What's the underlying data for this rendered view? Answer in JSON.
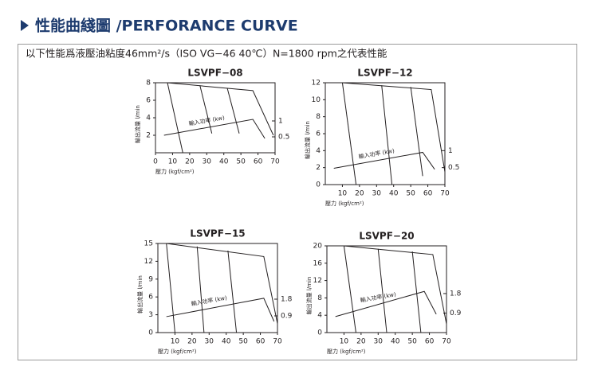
{
  "header": {
    "title": "性能曲綫圖 /PERFORANCE CURVE",
    "note": "以下性能爲液壓油粘度46mm²/s（ISO VG−46 40℃）N=1800 rpm之代表性能"
  },
  "chart_data": [
    {
      "type": "line",
      "title": "LSVPF−08",
      "x_label": "壓力 (kgf/cm²)",
      "y_label": "輸出流量 l/min",
      "annotation": "輸入功率 (kw)",
      "color": "#231f20",
      "xlim": [
        0,
        70
      ],
      "xticks": [
        0,
        10,
        20,
        30,
        40,
        50,
        60,
        70
      ],
      "ylim": [
        0,
        8
      ],
      "yticks": [
        2,
        4,
        6,
        8
      ],
      "y2lim": [
        0,
        2.2
      ],
      "y2ticks": [
        0.5,
        1
      ],
      "series": [
        {
          "x": [
            7,
            57,
            69
          ],
          "values": [
            8,
            7.1,
            2
          ]
        },
        {
          "x": [
            7,
            16
          ],
          "values": [
            8,
            0
          ]
        },
        {
          "x": [
            26,
            33
          ],
          "values": [
            7.7,
            2.2
          ]
        },
        {
          "x": [
            42,
            49
          ],
          "values": [
            7.4,
            2.2
          ]
        },
        {
          "x": [
            5,
            57,
            64
          ],
          "values": [
            0.55,
            1.05,
            0.45
          ],
          "axis": "y2"
        }
      ]
    },
    {
      "type": "line",
      "title": "LSVPF−12",
      "x_label": "壓力 (kgf/cm²)",
      "y_label": "輸出流量 l/min",
      "annotation": "輸入功率 (kw)",
      "color": "#231f20",
      "xlim": [
        0,
        70
      ],
      "xticks": [
        10,
        20,
        30,
        40,
        50,
        60,
        70
      ],
      "ylim": [
        0,
        12
      ],
      "yticks": [
        0,
        2,
        4,
        6,
        8,
        10,
        12
      ],
      "y2lim": [
        0,
        3
      ],
      "y2ticks": [
        0.5,
        1
      ],
      "series": [
        {
          "x": [
            10,
            62,
            70
          ],
          "values": [
            12,
            11.2,
            1.5
          ]
        },
        {
          "x": [
            10,
            18
          ],
          "values": [
            12,
            0
          ]
        },
        {
          "x": [
            33,
            39
          ],
          "values": [
            11.7,
            0
          ]
        },
        {
          "x": [
            50,
            57
          ],
          "values": [
            11.5,
            1
          ]
        },
        {
          "x": [
            5,
            57,
            64
          ],
          "values": [
            0.48,
            0.95,
            0.45
          ],
          "axis": "y2"
        }
      ]
    },
    {
      "type": "line",
      "title": "LSVPF−15",
      "x_label": "壓力 (kgf/cm²)",
      "y_label": "輸出流量 l/min",
      "annotation": "輸入功率 (kw)",
      "color": "#231f20",
      "xlim": [
        0,
        70
      ],
      "xticks": [
        10,
        20,
        30,
        40,
        50,
        60,
        70
      ],
      "ylim": [
        0,
        15
      ],
      "yticks": [
        0,
        3,
        6,
        9,
        12,
        15
      ],
      "y2lim": [
        0,
        4.8
      ],
      "y2ticks": [
        0.9,
        1.8
      ],
      "series": [
        {
          "x": [
            5,
            62,
            70
          ],
          "values": [
            15,
            12.8,
            1.5
          ]
        },
        {
          "x": [
            5,
            10
          ],
          "values": [
            15,
            0
          ]
        },
        {
          "x": [
            23,
            27
          ],
          "values": [
            14.5,
            0
          ]
        },
        {
          "x": [
            41,
            46
          ],
          "values": [
            13.8,
            0
          ]
        },
        {
          "x": [
            5,
            62,
            68
          ],
          "values": [
            0.86,
            1.85,
            0.6
          ],
          "axis": "y2"
        }
      ]
    },
    {
      "type": "line",
      "title": "LSVPF−20",
      "x_label": "壓力 (kgf/cm²)",
      "y_label": "輸出流量 l/min",
      "annotation": "輸入功率 (kw)",
      "color": "#231f20",
      "xlim": [
        0,
        70
      ],
      "xticks": [
        10,
        20,
        30,
        40,
        50,
        60,
        70
      ],
      "ylim": [
        0,
        20
      ],
      "yticks": [
        0,
        4,
        8,
        12,
        16,
        20
      ],
      "y2lim": [
        0,
        4
      ],
      "y2ticks": [
        0.9,
        1.8
      ],
      "series": [
        {
          "x": [
            10,
            62,
            70
          ],
          "values": [
            20,
            18,
            2
          ]
        },
        {
          "x": [
            10,
            17
          ],
          "values": [
            20,
            0
          ]
        },
        {
          "x": [
            30,
            35
          ],
          "values": [
            19.3,
            0
          ]
        },
        {
          "x": [
            50,
            55
          ],
          "values": [
            18.7,
            0
          ]
        },
        {
          "x": [
            5,
            57,
            64
          ],
          "values": [
            0.74,
            1.9,
            0.85
          ],
          "axis": "y2"
        }
      ]
    }
  ]
}
